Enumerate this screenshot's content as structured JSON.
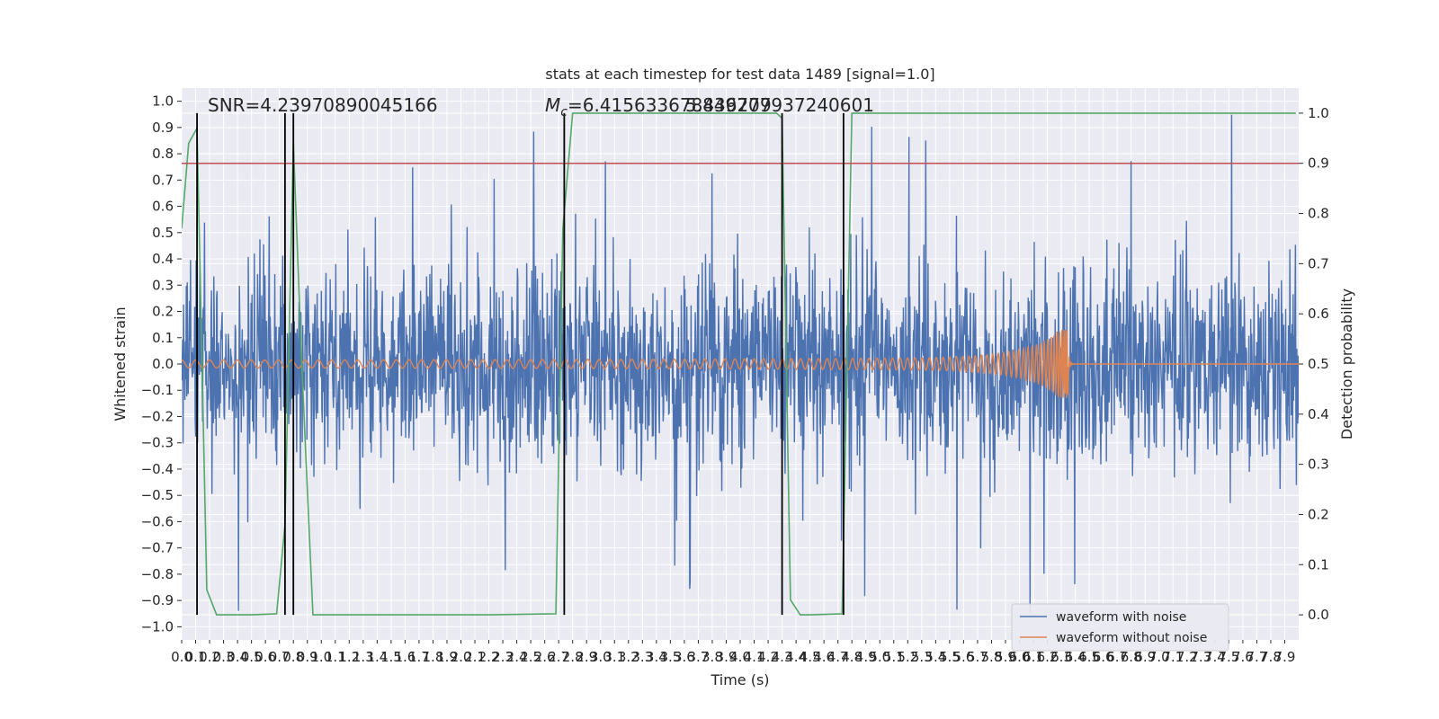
{
  "chart_data": {
    "type": "line",
    "title": "stats at each timestep for test data 1489 [signal=1.0]",
    "xlabel": "Time (s)",
    "ylabel": "Whitened strain",
    "ylabel_right": "Detection probability",
    "xlim": [
      0.0,
      8.0
    ],
    "ylim": [
      -1.05,
      1.05
    ],
    "ylim_right": [
      -0.05,
      1.05
    ],
    "x_ticks": [
      "0.0",
      "0.1",
      "0.2",
      "0.3",
      "0.4",
      "0.5",
      "0.6",
      "0.7",
      "0.8",
      "0.9",
      "1.0",
      "1.1",
      "1.2",
      "1.3",
      "1.4",
      "1.5",
      "1.6",
      "1.7",
      "1.8",
      "1.9",
      "2.0",
      "2.1",
      "2.2",
      "2.3",
      "2.4",
      "2.5",
      "2.6",
      "2.7",
      "2.8",
      "2.9",
      "3.0",
      "3.1",
      "3.2",
      "3.3",
      "3.4",
      "3.5",
      "3.6",
      "3.7",
      "3.8",
      "3.9",
      "4.0",
      "4.1",
      "4.2",
      "4.3",
      "4.4",
      "4.5",
      "4.6",
      "4.7",
      "4.8",
      "4.9",
      "5.0",
      "5.1",
      "5.2",
      "5.3",
      "5.4",
      "5.5",
      "5.6",
      "5.7",
      "5.8",
      "5.9",
      "6.0",
      "6.1",
      "6.2",
      "6.3",
      "6.4",
      "6.5",
      "6.6",
      "6.7",
      "6.8",
      "6.9",
      "7.0",
      "7.1",
      "7.2",
      "7.3",
      "7.4",
      "7.5",
      "7.6",
      "7.7",
      "7.8",
      "7.9"
    ],
    "y_ticks": [
      "−1.0",
      "−0.9",
      "−0.8",
      "−0.7",
      "−0.6",
      "−0.5",
      "−0.4",
      "−0.3",
      "−0.2",
      "−0.1",
      "0.0",
      "0.1",
      "0.2",
      "0.3",
      "0.4",
      "0.5",
      "0.6",
      "0.7",
      "0.8",
      "0.9",
      "1.0"
    ],
    "y_ticks_right": [
      "0.0",
      "0.1",
      "0.2",
      "0.3",
      "0.4",
      "0.5",
      "0.6",
      "0.7",
      "0.8",
      "0.9",
      "1.0"
    ],
    "annotations": {
      "snr": "SNR=4.23970890045166",
      "mc_symbol": "M",
      "mc_subscript": "c",
      "mc_value": "=6.415633678436279",
      "overlap": "5.849707937240601"
    },
    "series": [
      {
        "name": "waveform with noise",
        "color": "#4c72b0",
        "axis": "left",
        "style": "noise",
        "typical_amplitude": 0.3,
        "peak_amplitude": 1.0
      },
      {
        "name": "waveform without noise",
        "color": "#dd8452",
        "axis": "left",
        "style": "chirp",
        "start_amplitude": 0.015,
        "peak_amplitude": 0.13,
        "merger_time": 6.35
      },
      {
        "name": "",
        "color": "#55a868",
        "axis": "right",
        "style": "probability",
        "x": [
          0.0,
          0.05,
          0.11,
          0.18,
          0.25,
          0.31,
          0.5,
          0.68,
          0.74,
          0.8,
          0.86,
          0.94,
          2.2,
          2.68,
          2.73,
          2.8,
          4.26,
          4.3,
          4.36,
          4.43,
          4.5,
          4.73,
          4.8,
          7.98
        ],
        "y": [
          0.77,
          0.94,
          0.97,
          0.05,
          0.0,
          0.0,
          0.0,
          0.002,
          0.18,
          0.94,
          0.5,
          0.0,
          0.0,
          0.002,
          0.77,
          1.0,
          1.0,
          0.99,
          0.03,
          0.0,
          0.0,
          0.002,
          1.0,
          1.0
        ]
      },
      {
        "name": "",
        "color": "#c44e52",
        "axis": "right",
        "style": "threshold",
        "value": 0.9
      }
    ],
    "vertical_lines": [
      0.11,
      0.74,
      0.8,
      2.74,
      4.3,
      4.74
    ],
    "vertical_lines_color": "#000000",
    "legend": {
      "placement": "lower-right",
      "entries": [
        "waveform with noise",
        "waveform without noise"
      ]
    },
    "grid": true,
    "background": "#eaeaf2"
  }
}
